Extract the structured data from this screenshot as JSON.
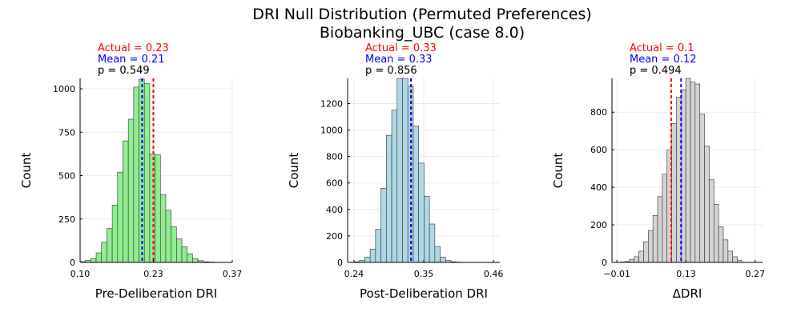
{
  "title_line1": "DRI Null Distribution (Permuted Preferences)",
  "title_line2": "Biobanking_UBC (case 8.0)",
  "colors": {
    "actual": "#ff0000",
    "mean": "#0000ff",
    "grid": "#e6e6e6",
    "bar_edge": "#333333"
  },
  "chart_data": [
    {
      "type": "bar",
      "xlabel": "Pre-Deliberation DRI",
      "ylabel": "Count",
      "xlim": [
        0.1,
        0.37
      ],
      "ylim": [
        0,
        1060
      ],
      "xticks": [
        0.1,
        0.23,
        0.37
      ],
      "xtick_labels": [
        "0.10",
        "0.23",
        "0.37"
      ],
      "yticks": [
        0,
        250,
        500,
        750,
        1000
      ],
      "ytick_labels": [
        "0",
        "250",
        "500",
        "750",
        "1000"
      ],
      "bin_width": 0.0095,
      "bin_starts": [
        0.1,
        0.1095,
        0.119,
        0.1285,
        0.138,
        0.1475,
        0.157,
        0.1665,
        0.176,
        0.1855,
        0.195,
        0.2045,
        0.214,
        0.2235,
        0.233,
        0.2425,
        0.252,
        0.2615,
        0.271,
        0.2805,
        0.29,
        0.2995,
        0.309,
        0.3185,
        0.328,
        0.3375
      ],
      "values": [
        5,
        12,
        22,
        55,
        115,
        195,
        330,
        520,
        700,
        825,
        1010,
        1055,
        1030,
        625,
        620,
        390,
        300,
        205,
        135,
        90,
        50,
        22,
        10,
        4,
        2,
        1
      ],
      "bar_color": "#90ee90",
      "actual_value": 0.23,
      "mean_value": 0.21,
      "annot_actual": "Actual = 0.23",
      "annot_mean": "Mean = 0.21",
      "annot_p": "p = 0.549"
    },
    {
      "type": "bar",
      "xlabel": "Post-Deliberation DRI",
      "ylabel": "Count",
      "xlim": [
        0.23,
        0.47
      ],
      "ylim": [
        0,
        1390
      ],
      "xticks": [
        0.24,
        0.35,
        0.46
      ],
      "xtick_labels": [
        "0.24",
        "0.35",
        "0.46"
      ],
      "yticks": [
        0,
        200,
        400,
        600,
        800,
        1000,
        1200
      ],
      "ytick_labels": [
        "0",
        "200",
        "400",
        "600",
        "800",
        "1000",
        "1200"
      ],
      "bin_width": 0.0085,
      "bin_starts": [
        0.24,
        0.2485,
        0.257,
        0.2655,
        0.274,
        0.2825,
        0.291,
        0.2995,
        0.308,
        0.3165,
        0.325,
        0.3335,
        0.342,
        0.3505,
        0.359,
        0.3675,
        0.376,
        0.3845,
        0.393,
        0.4015,
        0.41,
        0.4185
      ],
      "values": [
        5,
        15,
        40,
        100,
        250,
        560,
        960,
        1150,
        1390,
        1390,
        1330,
        1030,
        750,
        500,
        290,
        120,
        40,
        15,
        5,
        2,
        1,
        1
      ],
      "bar_color": "#add8e6",
      "actual_value": 0.33,
      "mean_value": 0.33,
      "annot_actual": "Actual = 0.33",
      "annot_mean": "Mean = 0.33",
      "annot_p": "p = 0.856"
    },
    {
      "type": "bar",
      "xlabel": "ΔDRI",
      "ylabel": "Count",
      "xlim": [
        -0.02,
        0.285
      ],
      "ylim": [
        0,
        980
      ],
      "xticks": [
        -0.01,
        0.13,
        0.27
      ],
      "xtick_labels": [
        "−0.01",
        "0.13",
        "0.27"
      ],
      "yticks": [
        0,
        200,
        400,
        600,
        800
      ],
      "ytick_labels": [
        "0",
        "200",
        "400",
        "600",
        "800"
      ],
      "bin_width": 0.0095,
      "bin_starts": [
        -0.0035,
        0.006,
        0.0155,
        0.025,
        0.0345,
        0.044,
        0.0535,
        0.063,
        0.0725,
        0.082,
        0.0915,
        0.101,
        0.1105,
        0.12,
        0.1295,
        0.139,
        0.1485,
        0.158,
        0.1675,
        0.177,
        0.1865,
        0.196,
        0.2055,
        0.215,
        0.2245,
        0.234
      ],
      "values": [
        2,
        5,
        15,
        30,
        60,
        110,
        170,
        250,
        350,
        470,
        600,
        740,
        880,
        920,
        980,
        960,
        950,
        790,
        620,
        440,
        310,
        190,
        120,
        60,
        30,
        10
      ],
      "bar_color": "#d3d3d3",
      "actual_value": 0.1,
      "mean_value": 0.12,
      "annot_actual": "Actual = 0.1",
      "annot_mean": "Mean = 0.12",
      "annot_p": "p = 0.494"
    }
  ]
}
